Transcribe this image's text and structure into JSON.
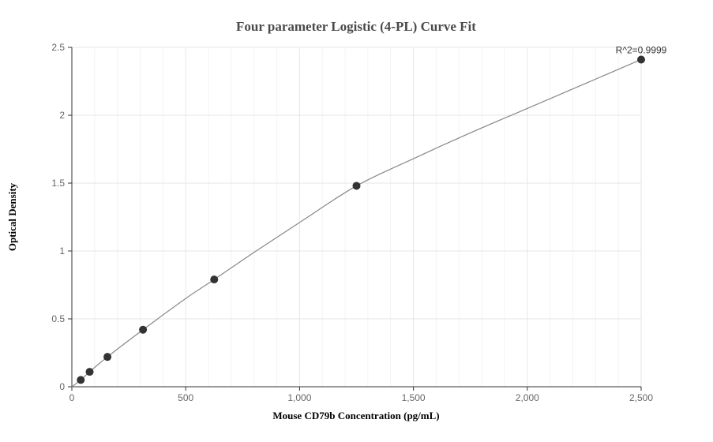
{
  "chart_data": {
    "type": "scatter",
    "title": "Four parameter Logistic (4-PL) Curve Fit",
    "xlabel": "Mouse CD79b Concentration (pg/mL)",
    "ylabel": "Optical Density",
    "xlim": [
      0,
      2500
    ],
    "ylim": [
      0,
      2.5
    ],
    "x_ticks": [
      0,
      500,
      1000,
      1500,
      2000,
      2500
    ],
    "x_tick_labels": [
      "0",
      "500",
      "1,000",
      "1,500",
      "2,000",
      "2,500"
    ],
    "y_ticks": [
      0,
      0.5,
      1,
      1.5,
      2,
      2.5
    ],
    "y_tick_labels": [
      "0",
      "0.5",
      "1",
      "1.5",
      "2",
      "2.5"
    ],
    "grid": true,
    "legend": "none",
    "series": [
      {
        "kind": "points",
        "x": [
          39.06,
          78.13,
          156.25,
          312.5,
          625,
          1250,
          2500
        ],
        "y": [
          0.05,
          0.11,
          0.22,
          0.42,
          0.79,
          1.48,
          2.41
        ]
      },
      {
        "kind": "fit-curve",
        "x": [
          0,
          39.06,
          78.13,
          156.25,
          312.5,
          500,
          625,
          800,
          1000,
          1250,
          1500,
          1750,
          2000,
          2250,
          2500
        ],
        "y": [
          0.0,
          0.05,
          0.11,
          0.22,
          0.42,
          0.65,
          0.79,
          0.99,
          1.21,
          1.48,
          1.68,
          1.87,
          2.05,
          2.23,
          2.41
        ]
      }
    ],
    "annotation": "R^2=0.9999",
    "colors": {
      "point": "#333333",
      "curve": "#888888",
      "grid_major": "#e6e6e6",
      "grid_minor": "#f3f3f3",
      "axis": "#333333"
    }
  }
}
